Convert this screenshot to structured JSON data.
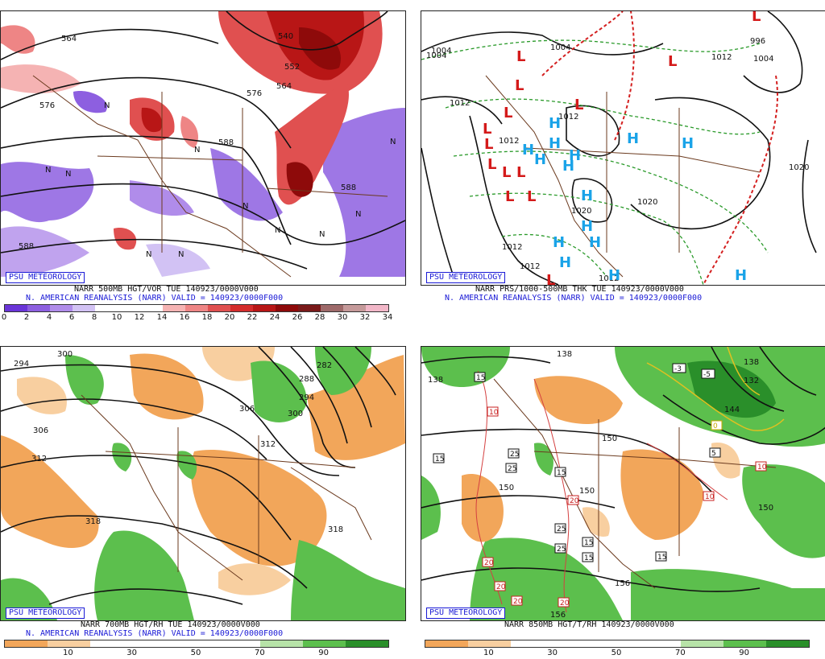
{
  "common": {
    "psu_label": "PSU METEOROLOGY"
  },
  "panels": [
    {
      "caption1": "NARR 500MB HGT/VOR TUE 140923/0000V000",
      "caption2": "N. AMERICAN REANALYSIS (NARR) VALID = 140923/0000F000",
      "contour_labels": [
        "564",
        "576",
        "540",
        "552",
        "564",
        "576",
        "588",
        "588",
        "588"
      ],
      "colorbar": {
        "colors": [
          "#6a35d8",
          "#8d5fe0",
          "#b08cea",
          "#d2c2f4",
          "#ffffff",
          "#ffffff",
          "#ffffff",
          "#f5b3b3",
          "#ee8585",
          "#e05050",
          "#d42c2c",
          "#b81616",
          "#8e0a0a",
          "#7a1a1a",
          "#9e6a6a",
          "#c59a9a",
          "#f2b7c8"
        ],
        "ticks": [
          "0",
          "2",
          "4",
          "6",
          "8",
          "10",
          "12",
          "14",
          "16",
          "18",
          "20",
          "22",
          "24",
          "26",
          "28",
          "30",
          "32",
          "34"
        ]
      },
      "vort_labels": [
        "N",
        "N",
        "N",
        "N",
        "N",
        "N",
        "N",
        "N",
        "N",
        "N",
        "N"
      ]
    },
    {
      "caption1": "NARR PRS/1000-500MB THK TUE 140923/0000V000",
      "caption2": "N. AMERICAN REANALYSIS (NARR) VALID = 140923/0000F000",
      "contour_labels": [
        "1004",
        "1004",
        "1012",
        "1012",
        "1020",
        "1020",
        "1012",
        "1012",
        "1012",
        "1020",
        "1012",
        "996",
        "1004",
        "1004",
        "1012"
      ],
      "highs": [
        "H",
        "H",
        "H",
        "H",
        "H",
        "H",
        "H",
        "H",
        "H",
        "H",
        "H",
        "H",
        "H",
        "H",
        "H"
      ],
      "lows": [
        "L",
        "L",
        "L",
        "L",
        "L",
        "L",
        "L",
        "L",
        "L",
        "L",
        "L",
        "L",
        "L",
        "L"
      ]
    },
    {
      "caption1": "NARR 700MB HGT/RH TUE 140923/0000V000",
      "caption2": "N. AMERICAN REANALYSIS (NARR) VALID = 140923/0000F000",
      "contour_labels": [
        "294",
        "300",
        "306",
        "312",
        "318",
        "306",
        "300",
        "312",
        "288",
        "282",
        "294",
        "318"
      ],
      "colorbar": {
        "colors": [
          "#f2a65a",
          "#f8cfa0",
          "#ffffff",
          "#ffffff",
          "#ffffff",
          "#ffffff",
          "#b7e3a8",
          "#5cbf4d",
          "#2a8f2a"
        ],
        "ticks": [
          "10",
          "30",
          "50",
          "70",
          "90"
        ]
      }
    },
    {
      "caption1": "NARR 850MB HGT/T/RH 140923/0000V000",
      "caption2": "",
      "contour_labels": [
        "138",
        "138",
        "150",
        "150",
        "150",
        "150",
        "156",
        "156",
        "144",
        "132",
        "138"
      ],
      "temp_boxes": [
        "15",
        "15",
        "25",
        "25",
        "15",
        "10",
        "20",
        "25",
        "25",
        "15",
        "20",
        "20",
        "20",
        "15",
        "5",
        "10",
        "-3",
        "-5",
        "0",
        "10",
        "20",
        "15"
      ],
      "colorbar": {
        "colors": [
          "#f2a65a",
          "#f8cfa0",
          "#ffffff",
          "#ffffff",
          "#ffffff",
          "#ffffff",
          "#b7e3a8",
          "#5cbf4d",
          "#2a8f2a"
        ],
        "ticks": [
          "10",
          "30",
          "50",
          "70",
          "90"
        ]
      }
    }
  ]
}
